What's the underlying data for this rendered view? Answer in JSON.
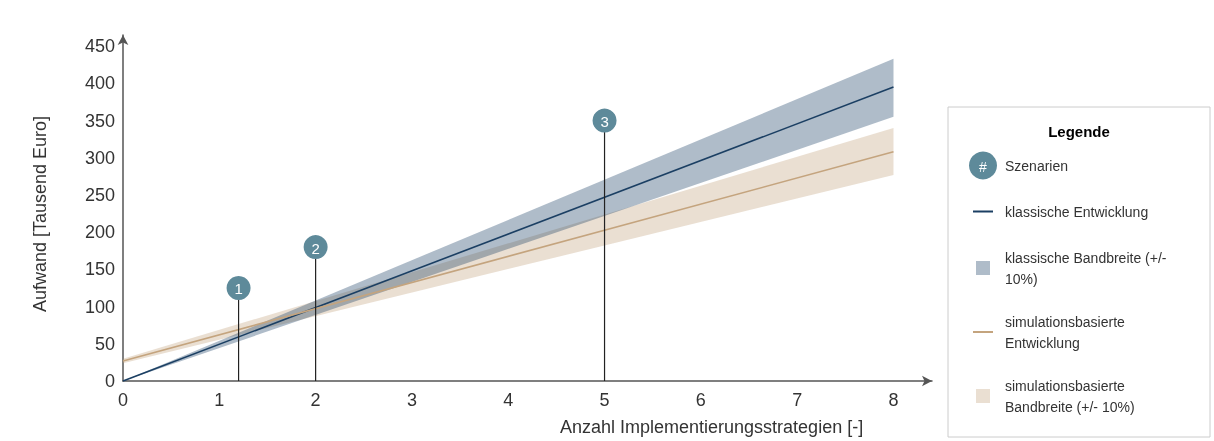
{
  "chart_data": {
    "type": "line",
    "xlabel": "Anzahl Implementierungsstrategien [-]",
    "ylabel": "Aufwand [Tausend Euro]",
    "legend_title": "Legende",
    "legend": "right",
    "xlim": [
      0,
      8.4
    ],
    "xticks": [
      0,
      1,
      2,
      3,
      4,
      5,
      6,
      7,
      8
    ],
    "ylim": [
      0,
      465
    ],
    "yticks": [
      0,
      50,
      100,
      150,
      200,
      250,
      300,
      350,
      400,
      450
    ],
    "annotations": [
      "#",
      "klassische Bandbreite (+/- 10%)",
      "simulationsbasierte Bandbreite (+/- 10%)",
      {
        "text": "1",
        "x": 1.2,
        "y": 125
      },
      {
        "text": "2",
        "x": 2,
        "y": 180
      },
      {
        "text": "3",
        "x": 5,
        "y": 350
      }
    ],
    "series": [
      {
        "type": "lollipop",
        "name": "Szenarien",
        "color": "#5e8a9a",
        "x": [
          1.2,
          2,
          5
        ],
        "values": [
          125,
          180,
          350
        ]
      },
      {
        "type": "line",
        "name": "klassische Entwicklung",
        "color": "#1b3f63",
        "x": [
          0,
          8
        ],
        "values": [
          0,
          395
        ],
        "lower": [
          0,
          355
        ],
        "upper": [
          0,
          433
        ]
      },
      {
        "type": "line",
        "name": "simulationsbasierte Entwicklung",
        "color": "#c4a47e",
        "x": [
          0,
          8
        ],
        "values": [
          27,
          308
        ],
        "lower": [
          24,
          277
        ],
        "upper": [
          30,
          340
        ]
      }
    ]
  }
}
